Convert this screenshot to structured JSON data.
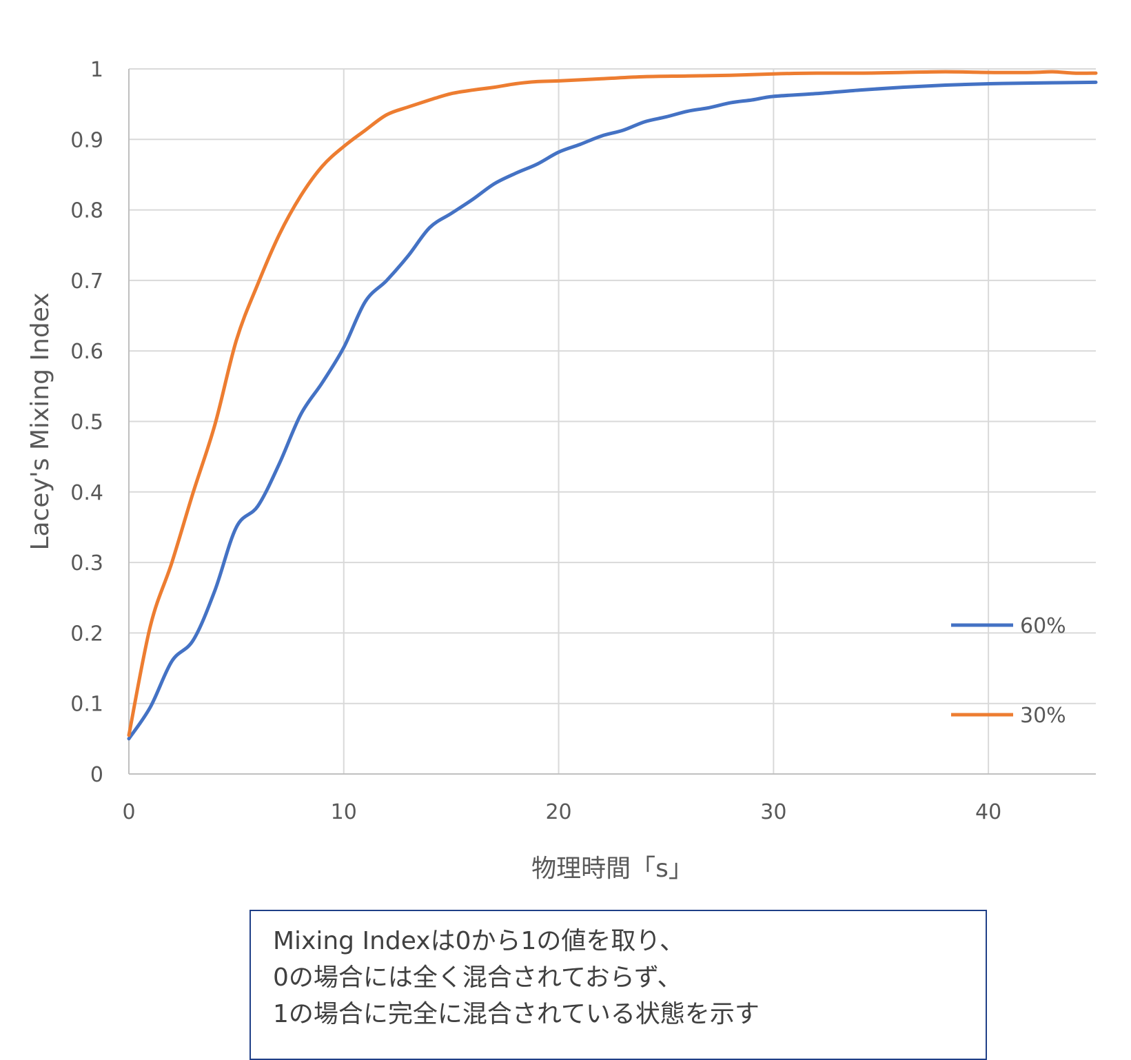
{
  "chart_data": {
    "type": "line",
    "xlabel": "物理時間「s」",
    "ylabel": "Lacey's Mixing Index",
    "xlim": [
      0,
      45
    ],
    "ylim": [
      0,
      1
    ],
    "x_ticks": [
      0,
      10,
      20,
      30,
      40
    ],
    "y_ticks": [
      0,
      0.1,
      0.2,
      0.3,
      0.4,
      0.5,
      0.6,
      0.7,
      0.8,
      0.9,
      1
    ],
    "grid": true,
    "legend_position": "bottom-right",
    "series": [
      {
        "name": "60%",
        "color": "#4472C4",
        "x": [
          0,
          1,
          2,
          3,
          4,
          5,
          6,
          7,
          8,
          9,
          10,
          11,
          12,
          13,
          14,
          15,
          16,
          17,
          18,
          19,
          20,
          21,
          22,
          23,
          24,
          25,
          26,
          27,
          28,
          29,
          30,
          32,
          34,
          36,
          38,
          40,
          42,
          45
        ],
        "y": [
          0.05,
          0.095,
          0.16,
          0.19,
          0.26,
          0.35,
          0.38,
          0.44,
          0.51,
          0.555,
          0.605,
          0.67,
          0.7,
          0.735,
          0.775,
          0.795,
          0.815,
          0.837,
          0.852,
          0.865,
          0.882,
          0.893,
          0.905,
          0.913,
          0.925,
          0.932,
          0.94,
          0.945,
          0.952,
          0.956,
          0.961,
          0.965,
          0.97,
          0.974,
          0.977,
          0.979,
          0.98,
          0.981
        ]
      },
      {
        "name": "30%",
        "color": "#ED7D31",
        "x": [
          0,
          1,
          2,
          3,
          4,
          5,
          6,
          7,
          8,
          9,
          10,
          11,
          12,
          13,
          14,
          15,
          16,
          17,
          18,
          19,
          20,
          22,
          24,
          26,
          28,
          30,
          32,
          34,
          36,
          38,
          40,
          42,
          43,
          44,
          45
        ],
        "y": [
          0.055,
          0.21,
          0.3,
          0.4,
          0.495,
          0.615,
          0.695,
          0.765,
          0.82,
          0.862,
          0.89,
          0.913,
          0.935,
          0.946,
          0.956,
          0.965,
          0.97,
          0.974,
          0.979,
          0.982,
          0.983,
          0.986,
          0.989,
          0.99,
          0.991,
          0.993,
          0.994,
          0.994,
          0.995,
          0.996,
          0.995,
          0.995,
          0.996,
          0.994,
          0.994
        ]
      }
    ]
  },
  "note": {
    "lines": [
      "Mixing Indexは0から1の値を取り、",
      "0の場合には全く混合されておらず、",
      "1の場合に完全に混合されている状態を示す"
    ]
  }
}
